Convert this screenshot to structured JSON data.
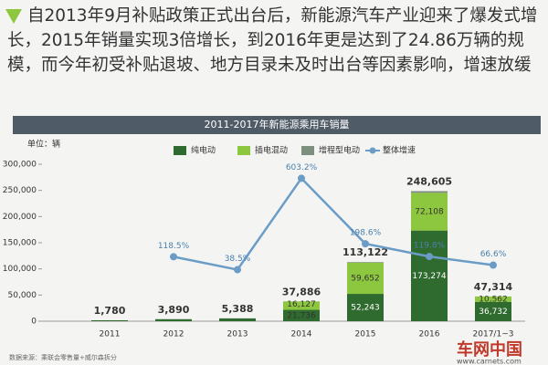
{
  "intro": "自2013年9月补贴政策正式出台后，新能源汽车产业迎来了爆发式增长，2015年销量实现3倍增长，到2016年更是达到了24.86万辆的规模，而今年初受补贴退坡、地方目录未及时出台等因素影响，增速放缓",
  "logo": {
    "name": "车网中国",
    "url": "www.carnets.com"
  },
  "chart_data": {
    "type": "bar",
    "stacked": true,
    "title": "2011-2017年新能源乘用车销量",
    "unit": "单位：辆",
    "source": "数据来源：乘联会零售量+威尔森拆分",
    "categories": [
      "2011",
      "2012",
      "2013",
      "2014",
      "2015",
      "2016",
      "2017/1~3"
    ],
    "series": [
      {
        "name": "纯电动",
        "color": "#2f6b2f",
        "values": [
          null,
          null,
          null,
          21736,
          52243,
          173274,
          36732
        ],
        "value_labels": [
          null,
          null,
          null,
          "21,736",
          "52,243",
          "173,274",
          "36,732"
        ]
      },
      {
        "name": "插电混动",
        "color": "#8dc63f",
        "values": [
          null,
          null,
          null,
          16127,
          59652,
          72108,
          10562
        ],
        "value_labels": [
          null,
          null,
          null,
          "16,127",
          "59,652",
          "72,108",
          "10,562"
        ]
      },
      {
        "name": "增程型电动",
        "color": "#7f8f7f",
        "values": [
          null,
          null,
          null,
          23,
          1227,
          3223,
          20
        ]
      },
      {
        "name": "整体增速",
        "type": "line",
        "axis": "y2",
        "color": "#6a9cc6",
        "values": [
          null,
          118.5,
          38.5,
          603.2,
          198.6,
          119.8,
          66.6
        ],
        "value_labels": [
          null,
          "118.5%",
          "38.5%",
          "603.2%",
          "198.6%",
          "119.8%",
          "66.6%"
        ]
      }
    ],
    "total": {
      "color": "#2f6b2f",
      "values": [
        1780,
        3890,
        5388,
        37886,
        113122,
        248605,
        47314
      ],
      "value_labels": [
        "1,780",
        "3,890",
        "5,388",
        "37,886",
        "113,122",
        "248,605",
        "47,314"
      ]
    },
    "ylim": [
      0,
      300000
    ],
    "yticks": [
      0,
      {
        "value": 50000,
        "label": "50,000"
      },
      {
        "value": 100000,
        "label": "100,000"
      },
      {
        "value": 150000,
        "label": "150,000"
      },
      {
        "value": 200000,
        "label": "200,000"
      },
      {
        "value": 250000,
        "label": "250,000"
      },
      {
        "value": 300000,
        "label": "300,000"
      }
    ],
    "y2lim": [
      -280,
      690
    ],
    "grid": false,
    "legend": "top"
  }
}
